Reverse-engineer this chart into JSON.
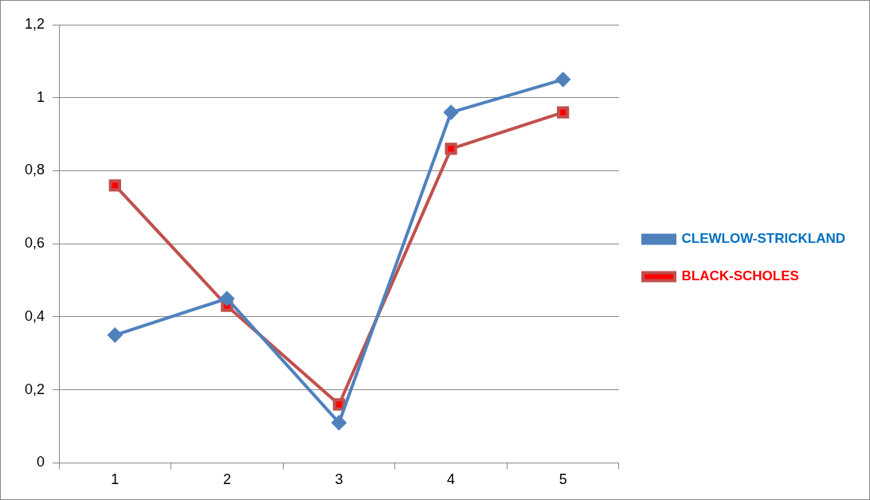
{
  "chart_data": {
    "type": "line",
    "categories": [
      "1",
      "2",
      "3",
      "4",
      "5"
    ],
    "series": [
      {
        "name": "CLEWLOW-STRICKLAND",
        "color": "#4f81bd",
        "marker": "diamond",
        "values": [
          0.35,
          0.45,
          0.11,
          0.96,
          1.05
        ]
      },
      {
        "name": "BLACK-SCHOLES",
        "color": "#c0504d",
        "marker": "square",
        "values": [
          0.76,
          0.43,
          0.16,
          0.86,
          0.96
        ]
      }
    ],
    "ylim": [
      0,
      1.2
    ],
    "yticks": [
      0,
      {
        "value": 0.2,
        "label": "0,2"
      },
      {
        "value": 0.4,
        "label": "0,4"
      },
      {
        "value": 0.6,
        "label": "0,6"
      },
      {
        "value": 0.8,
        "label": "0,8"
      },
      1,
      {
        "value": 1.2,
        "label": "1,2"
      }
    ],
    "grid": "y",
    "legend": "right"
  }
}
